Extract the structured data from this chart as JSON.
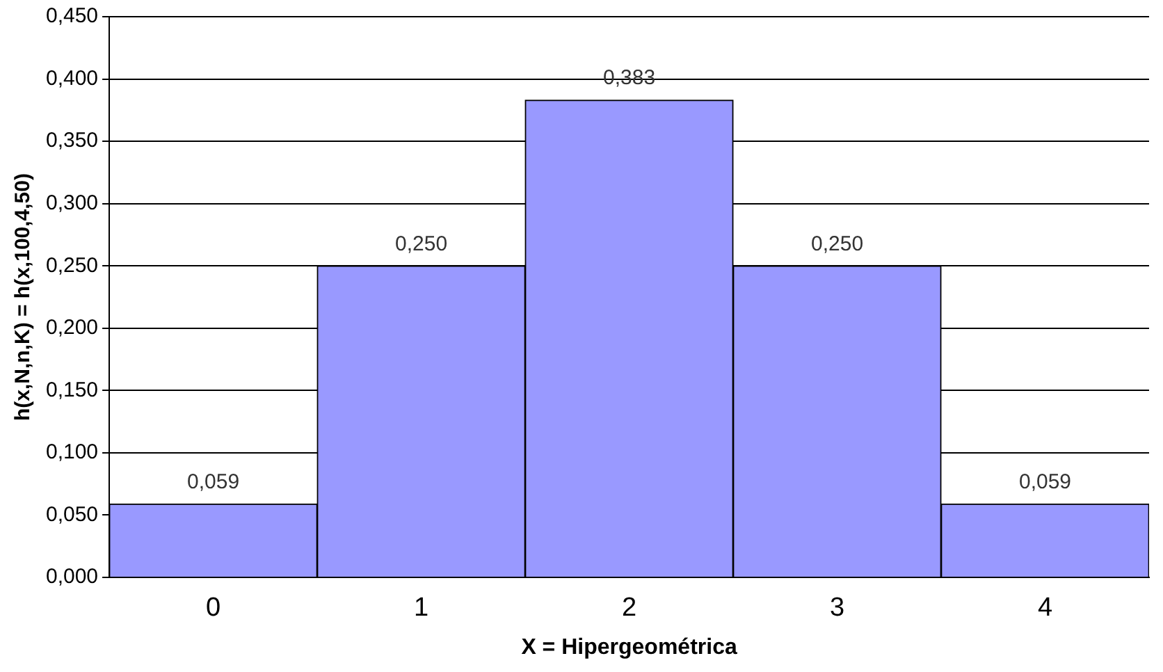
{
  "chart_data": {
    "type": "bar",
    "xlabel": "X = Hipergeométrica",
    "ylabel": "h(x,N,n,K) = h(x,100,4,50)",
    "categories": [
      "0",
      "1",
      "2",
      "3",
      "4"
    ],
    "values": [
      0.059,
      0.25,
      0.383,
      0.25,
      0.059
    ],
    "value_labels": [
      "0,059",
      "0,250",
      "0,383",
      "0,250",
      "0,059"
    ],
    "color": "#9999ff",
    "ylim": [
      0,
      0.45
    ],
    "yticks": [
      {
        "value": 0,
        "label": "0,000"
      },
      {
        "value": 0.05,
        "label": "0,050"
      },
      {
        "value": 0.1,
        "label": "0,100"
      },
      {
        "value": 0.15,
        "label": "0,150"
      },
      {
        "value": 0.2,
        "label": "0,200"
      },
      {
        "value": 0.25,
        "label": "0,250"
      },
      {
        "value": 0.3,
        "label": "0,300"
      },
      {
        "value": 0.35,
        "label": "0,350"
      },
      {
        "value": 0.4,
        "label": "0,400"
      },
      {
        "value": 0.45,
        "label": "0,450"
      }
    ],
    "grid": "y",
    "legend": false
  }
}
